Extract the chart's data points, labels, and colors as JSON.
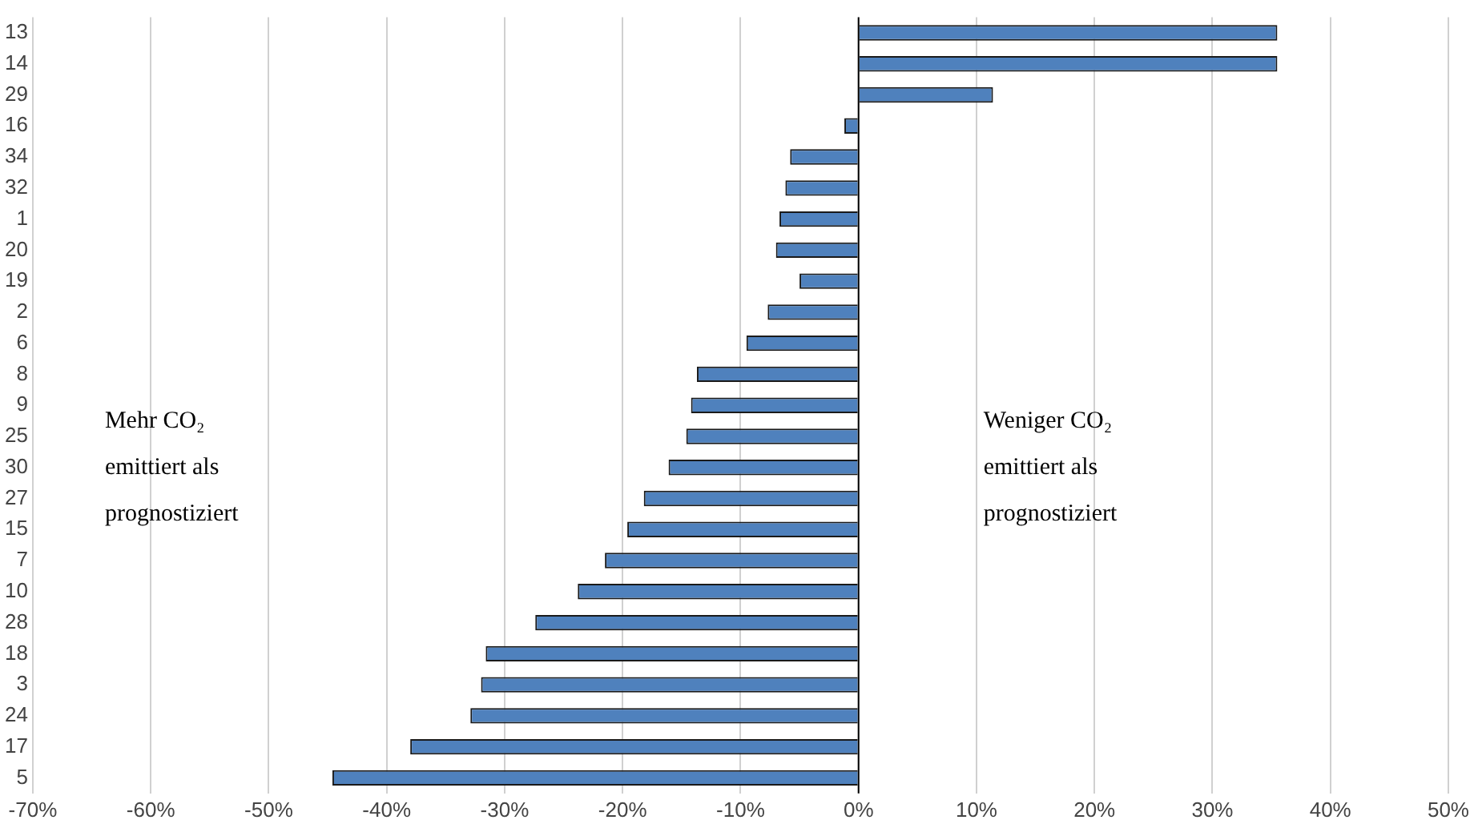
{
  "chart_data": {
    "type": "bar",
    "orientation": "horizontal",
    "categories": [
      "13",
      "14",
      "29",
      "16",
      "34",
      "32",
      "1",
      "20",
      "19",
      "2",
      "6",
      "8",
      "9",
      "25",
      "30",
      "27",
      "15",
      "7",
      "10",
      "28",
      "18",
      "3",
      "24",
      "17",
      "5"
    ],
    "values": [
      35.5,
      35.5,
      11.4,
      -1.2,
      -5.8,
      -6.2,
      -6.7,
      -7.0,
      -5.0,
      -7.7,
      -9.5,
      -13.7,
      -14.2,
      -14.6,
      -16.1,
      -18.2,
      -19.6,
      -21.5,
      -23.8,
      -27.4,
      -31.6,
      -32.0,
      -32.9,
      -38.0,
      -44.6
    ],
    "color": "#4f81bd",
    "xlim": [
      -70,
      50
    ],
    "xticks": [
      {
        "value": -70,
        "label": "-70%"
      },
      {
        "value": -60,
        "label": "-60%"
      },
      {
        "value": -50,
        "label": "-50%"
      },
      {
        "value": -40,
        "label": "-40%"
      },
      {
        "value": -30,
        "label": "-30%"
      },
      {
        "value": -20,
        "label": "-20%"
      },
      {
        "value": -10,
        "label": "-10%"
      },
      {
        "value": 0,
        "label": "0%"
      },
      {
        "value": 10,
        "label": "10%"
      },
      {
        "value": 20,
        "label": "20%"
      },
      {
        "value": 30,
        "label": "30%"
      },
      {
        "value": 40,
        "label": "40%"
      },
      {
        "value": 50,
        "label": "50%"
      }
    ],
    "annotations": [
      "Mehr CO₂\nemittiert als\nprognostiziert",
      "Weniger CO₂\nemittiert als\nprognostiziert"
    ],
    "grid": "x",
    "legend": false
  }
}
